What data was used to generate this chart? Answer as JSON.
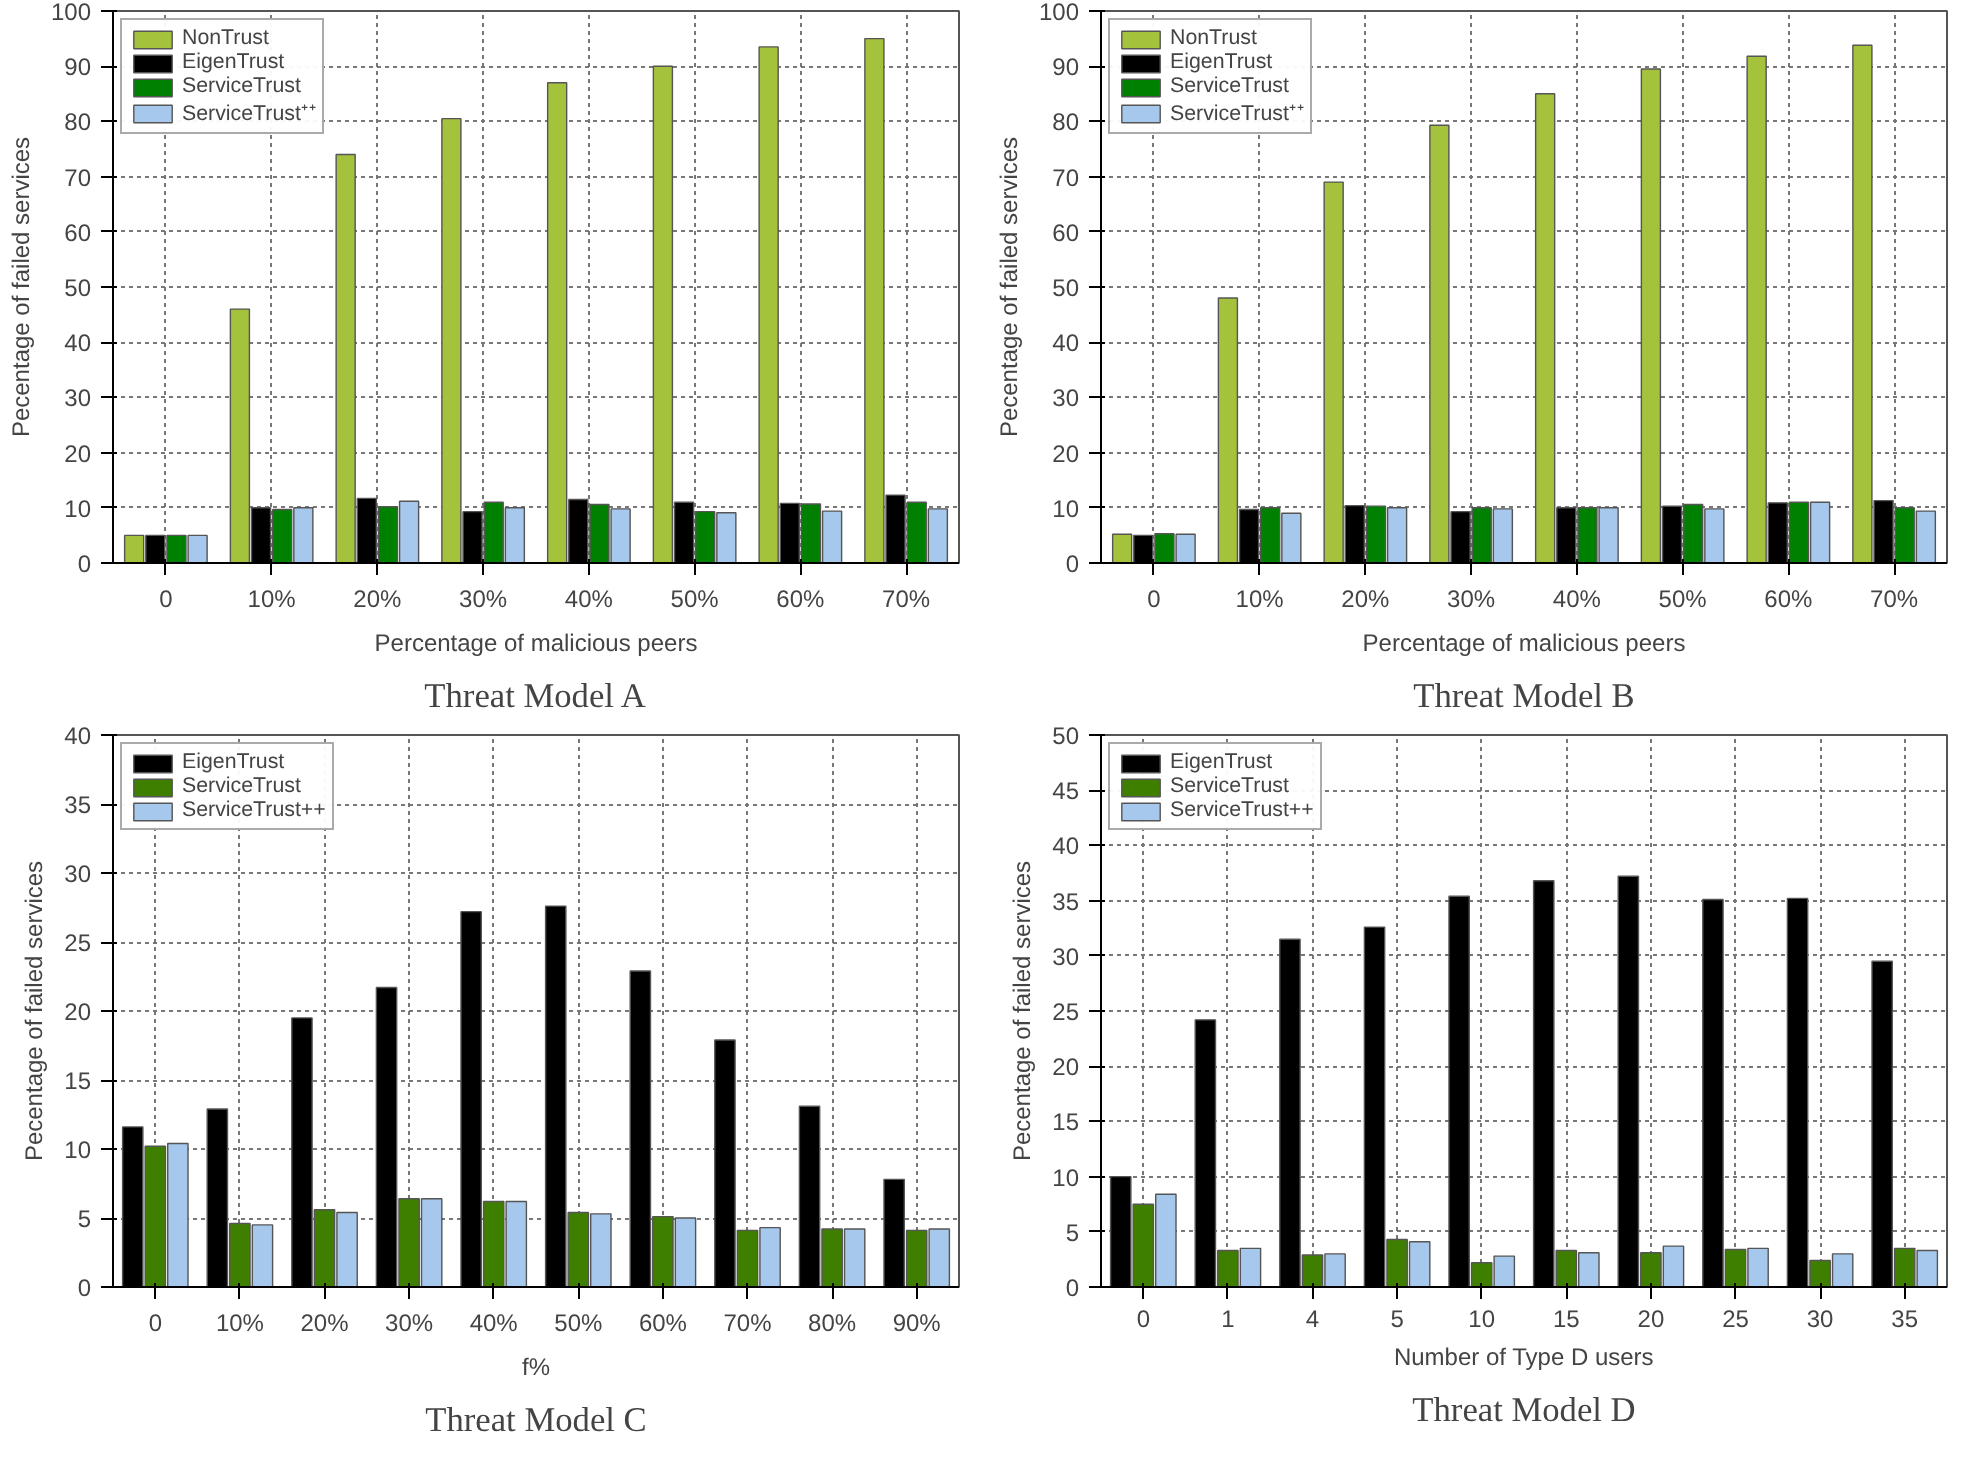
{
  "chart_data": [
    {
      "type": "bar",
      "title": "Threat Model A",
      "xlabel": "Percentage of malicious peers",
      "ylabel": "Pecentage of failed services",
      "categories": [
        "0",
        "10%",
        "20%",
        "30%",
        "40%",
        "50%",
        "60%",
        "70%"
      ],
      "ylim": [
        0,
        100
      ],
      "yticks": [
        0,
        10,
        20,
        30,
        40,
        50,
        60,
        70,
        80,
        90,
        100
      ],
      "grid": true,
      "legend": "top left",
      "series": [
        {
          "name": "NonTrust",
          "color": "#a4c23c",
          "values": [
            5,
            46,
            74,
            80.5,
            87,
            90,
            93.5,
            95
          ]
        },
        {
          "name": "EigenTrust",
          "color": "#000000",
          "values": [
            5,
            10,
            11.7,
            9.3,
            11.5,
            11,
            10.8,
            12.3
          ]
        },
        {
          "name": "ServiceTrust",
          "color": "#008000",
          "values": [
            5,
            9.7,
            10.2,
            11,
            10.6,
            9.3,
            10.7,
            11
          ]
        },
        {
          "name": "ServiceTrust⁺⁺",
          "color": "#a6c8ec",
          "values": [
            5,
            10,
            11.2,
            10,
            9.8,
            9.1,
            9.4,
            9.8
          ]
        }
      ]
    },
    {
      "type": "bar",
      "title": "Threat Model B",
      "xlabel": "Percentage of malicious peers",
      "ylabel": "Pecentage of failed services",
      "categories": [
        "0",
        "10%",
        "20%",
        "30%",
        "40%",
        "50%",
        "60%",
        "70%"
      ],
      "ylim": [
        0,
        100
      ],
      "yticks": [
        0,
        10,
        20,
        30,
        40,
        50,
        60,
        70,
        80,
        90,
        100
      ],
      "grid": true,
      "legend": "top left",
      "series": [
        {
          "name": "NonTrust",
          "color": "#a4c23c",
          "values": [
            5.2,
            48,
            69,
            79.3,
            85,
            89.5,
            91.8,
            93.8
          ]
        },
        {
          "name": "EigenTrust",
          "color": "#000000",
          "values": [
            5,
            9.7,
            10.4,
            9.3,
            10,
            10.3,
            10.9,
            11.3
          ]
        },
        {
          "name": "ServiceTrust",
          "color": "#008000",
          "values": [
            5.3,
            10,
            10.3,
            10,
            10,
            10.6,
            11,
            10
          ]
        },
        {
          "name": "ServiceTrust⁺⁺",
          "color": "#a6c8ec",
          "values": [
            5.2,
            9,
            10,
            9.8,
            10,
            9.8,
            11,
            9.4
          ]
        }
      ]
    },
    {
      "type": "bar",
      "title": "Threat Model C",
      "xlabel": "f%",
      "ylabel": "Pecentage of failed services",
      "categories": [
        "0",
        "10%",
        "20%",
        "30%",
        "40%",
        "50%",
        "60%",
        "70%",
        "80%",
        "90%"
      ],
      "ylim": [
        0,
        40
      ],
      "yticks": [
        0,
        5,
        10,
        15,
        20,
        25,
        30,
        35,
        40
      ],
      "grid": true,
      "legend": "top left",
      "series": [
        {
          "name": "EigenTrust",
          "color": "#000000",
          "values": [
            11.6,
            12.9,
            19.5,
            21.7,
            27.2,
            27.6,
            22.9,
            17.9,
            13.1,
            7.8
          ]
        },
        {
          "name": "ServiceTrust",
          "color": "#3f7f00",
          "values": [
            10.2,
            4.6,
            5.6,
            6.4,
            6.2,
            5.4,
            5.1,
            4.1,
            4.2,
            4.1
          ]
        },
        {
          "name": "ServiceTrust++",
          "color": "#a6c8ec",
          "values": [
            10.4,
            4.5,
            5.4,
            6.4,
            6.2,
            5.3,
            5.0,
            4.3,
            4.2,
            4.2
          ]
        }
      ]
    },
    {
      "type": "bar",
      "title": "Threat Model D",
      "xlabel": "Number of Type D users",
      "ylabel": "Pecentage of failed services",
      "categories": [
        "0",
        "1",
        "4",
        "5",
        "10",
        "15",
        "20",
        "25",
        "30",
        "35"
      ],
      "ylim": [
        0,
        50
      ],
      "yticks": [
        0,
        5,
        10,
        15,
        20,
        25,
        30,
        35,
        40,
        45,
        50
      ],
      "grid": true,
      "legend": "top left",
      "series": [
        {
          "name": "EigenTrust",
          "color": "#000000",
          "values": [
            10,
            24.2,
            31.5,
            32.6,
            35.4,
            36.8,
            37.2,
            35.1,
            35.2,
            29.5
          ]
        },
        {
          "name": "ServiceTrust",
          "color": "#3f7f00",
          "values": [
            7.5,
            3.3,
            2.9,
            4.3,
            2.2,
            3.3,
            3.1,
            3.4,
            2.4,
            3.5
          ]
        },
        {
          "name": "ServiceTrust++",
          "color": "#a6c8ec",
          "values": [
            8.4,
            3.5,
            3.0,
            4.1,
            2.8,
            3.1,
            3.7,
            3.5,
            3.0,
            3.3
          ]
        }
      ]
    }
  ]
}
